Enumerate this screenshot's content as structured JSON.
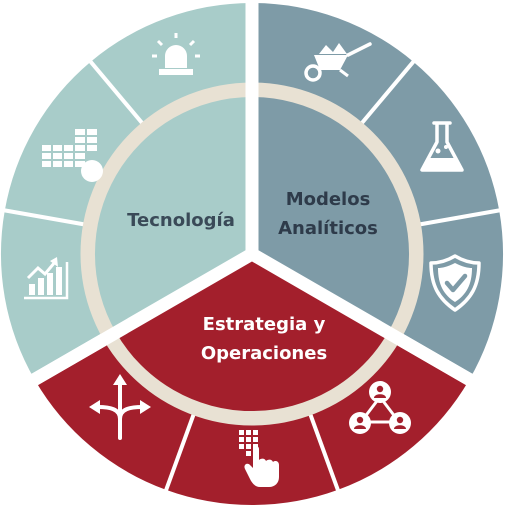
{
  "colors": {
    "tecnologia": "#A8CCC9",
    "modelos": "#7E9BA7",
    "estrategia": "#A31F2C",
    "ring": "#E8E1D3",
    "gap": "#FFFFFF",
    "icon": "#FFFFFF"
  },
  "segments": {
    "tecnologia": {
      "label": "Tecnología"
    },
    "modelos": {
      "label_line1": "Modelos",
      "label_line2": "Analíticos"
    },
    "estrategia": {
      "label_line1": "Estrategia y",
      "label_line2": "Operaciones"
    }
  },
  "icons": {
    "tecnologia": [
      "siren-icon",
      "server-stack-icon",
      "growth-chart-icon"
    ],
    "modelos": [
      "wheelbarrow-icon",
      "lab-flask-icon",
      "shield-check-icon"
    ],
    "estrategia": [
      "diverging-arrows-icon",
      "touch-keypad-icon",
      "people-network-icon"
    ]
  }
}
